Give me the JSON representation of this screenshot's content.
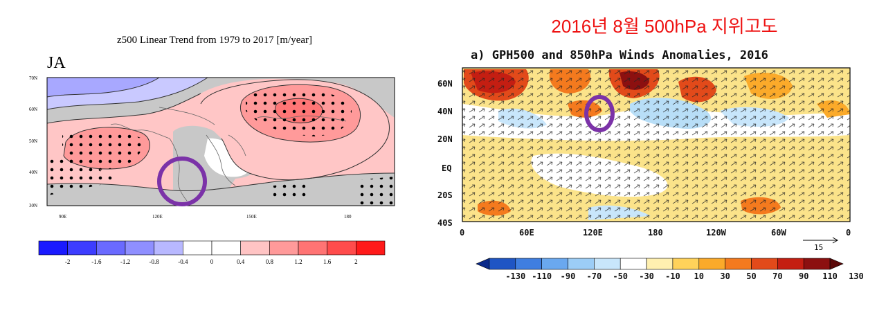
{
  "left_panel": {
    "title": "z500 Linear Trend from 1979 to 2017 [m/year]",
    "season_label": "JA",
    "colors": [
      "#1a1aff",
      "#3d3dff",
      "#6a6aff",
      "#8f8fff",
      "#b8b8ff",
      "#ffffff",
      "#ffffff",
      "#ffc4c4",
      "#ff9a9a",
      "#ff7474",
      "#ff4c4c",
      "#ff1a1a"
    ],
    "colorbar_labels": [
      "-2",
      "-1.6",
      "-1.2",
      "-0.8",
      "-0.4",
      "0",
      "0.4",
      "0.8",
      "1.2",
      "1.6",
      "2"
    ]
  },
  "right_panel": {
    "heading": "2016년 8월 500hPa 지위고도",
    "title": "a) GPH500 and 850hPa Winds Anomalies, 2016",
    "colors": [
      "#0a2a8a",
      "#1f55c4",
      "#3f7ee0",
      "#6aa8ef",
      "#9ccdf6",
      "#c8e6fb",
      "#ffffff",
      "#fff0b0",
      "#ffd25a",
      "#fbaa2a",
      "#f47a1e",
      "#e24a1a",
      "#c41e12",
      "#8c1010",
      "#5a0808"
    ],
    "colorbar_labels": [
      "-130",
      "-110",
      "-90",
      "-70",
      "-50",
      "-30",
      "-10",
      "10",
      "30",
      "50",
      "70",
      "90",
      "110",
      "130"
    ],
    "vector_ref": "15"
  },
  "chart_data": [
    {
      "type": "heatmap",
      "title": "z500 Linear Trend from 1979 to 2017 [m/year]",
      "panel_label": "JA",
      "x_ticks": [
        "90E",
        "120E",
        "150E",
        "180"
      ],
      "y_ticks": [
        "30N",
        "40N",
        "50N",
        "60N",
        "70N"
      ],
      "colorbar": [
        -2,
        -1.6,
        -1.2,
        -0.8,
        -0.4,
        0,
        0.4,
        0.8,
        1.2,
        1.6,
        2
      ],
      "stippling": true,
      "highlight": "purple circle over Korean peninsula (~127E, 37N)"
    },
    {
      "type": "heatmap",
      "title": "a) GPH500 and 850hPa Winds Anomalies, 2016",
      "x_ticks": [
        "0",
        "60E",
        "120E",
        "180",
        "120W",
        "60W",
        "0"
      ],
      "y_ticks": [
        "60N",
        "40N",
        "20N",
        "EQ",
        "20S",
        "40S"
      ],
      "colorbar": [
        -130,
        -110,
        -90,
        -70,
        -50,
        -30,
        -10,
        10,
        30,
        50,
        70,
        90,
        110,
        130
      ],
      "vectors": "850hPa wind anomaly arrows",
      "reference_vector": 15,
      "highlight": "purple circle over Korea (~127E, 38N)"
    }
  ]
}
